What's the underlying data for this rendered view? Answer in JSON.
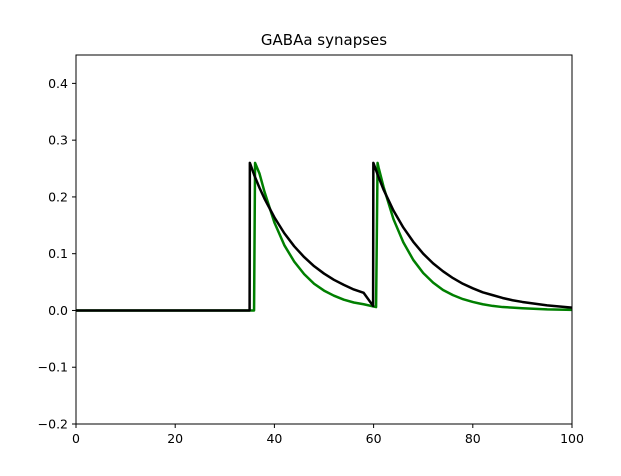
{
  "chart_data": {
    "type": "line",
    "title": "GABAa synapses",
    "xlabel": "",
    "ylabel": "",
    "xlim": [
      0,
      100
    ],
    "ylim": [
      -0.2,
      0.45
    ],
    "x_ticks": [
      0,
      20,
      40,
      60,
      80,
      100
    ],
    "x_tick_labels": [
      "0",
      "20",
      "40",
      "60",
      "80",
      "100"
    ],
    "y_ticks": [
      -0.2,
      -0.1,
      0.0,
      0.1,
      0.2,
      0.3,
      0.4
    ],
    "y_tick_labels": [
      "−0.2",
      "−0.1",
      "0.0",
      "0.1",
      "0.2",
      "0.3",
      "0.4"
    ],
    "grid": false,
    "legend": "none",
    "series": [
      {
        "color": "#007f00",
        "x": [
          0,
          35.9,
          36.1,
          37,
          38,
          40,
          42,
          44,
          46,
          48,
          50,
          52,
          54,
          56,
          58,
          60.5,
          60.8,
          61,
          62,
          64,
          66,
          68,
          70,
          72,
          74,
          76,
          78,
          80,
          82,
          84,
          86,
          88,
          90,
          95,
          100
        ],
        "y": [
          0,
          0,
          0.26,
          0.241,
          0.209,
          0.155,
          0.115,
          0.086,
          0.064,
          0.047,
          0.035,
          0.026,
          0.019,
          0.014,
          0.011,
          0.006,
          0.26,
          0.252,
          0.218,
          0.161,
          0.12,
          0.089,
          0.066,
          0.049,
          0.036,
          0.027,
          0.02,
          0.015,
          0.011,
          0.008,
          0.006,
          0.005,
          0.004,
          0.002,
          0.001
        ]
      },
      {
        "color": "#000000",
        "x": [
          0,
          35,
          35.05,
          36,
          37,
          38,
          40,
          42,
          44,
          46,
          48,
          50,
          52,
          54,
          56,
          58,
          59.9,
          59.95,
          61,
          62,
          64,
          66,
          68,
          70,
          72,
          74,
          76,
          78,
          80,
          82,
          84,
          86,
          88,
          90,
          95,
          100
        ],
        "y": [
          0,
          0,
          0.26,
          0.237,
          0.216,
          0.197,
          0.164,
          0.136,
          0.113,
          0.094,
          0.078,
          0.065,
          0.054,
          0.045,
          0.037,
          0.031,
          0.008,
          0.26,
          0.235,
          0.213,
          0.176,
          0.146,
          0.121,
          0.1,
          0.083,
          0.069,
          0.057,
          0.047,
          0.039,
          0.032,
          0.027,
          0.022,
          0.018,
          0.015,
          0.009,
          0.005
        ]
      }
    ]
  }
}
